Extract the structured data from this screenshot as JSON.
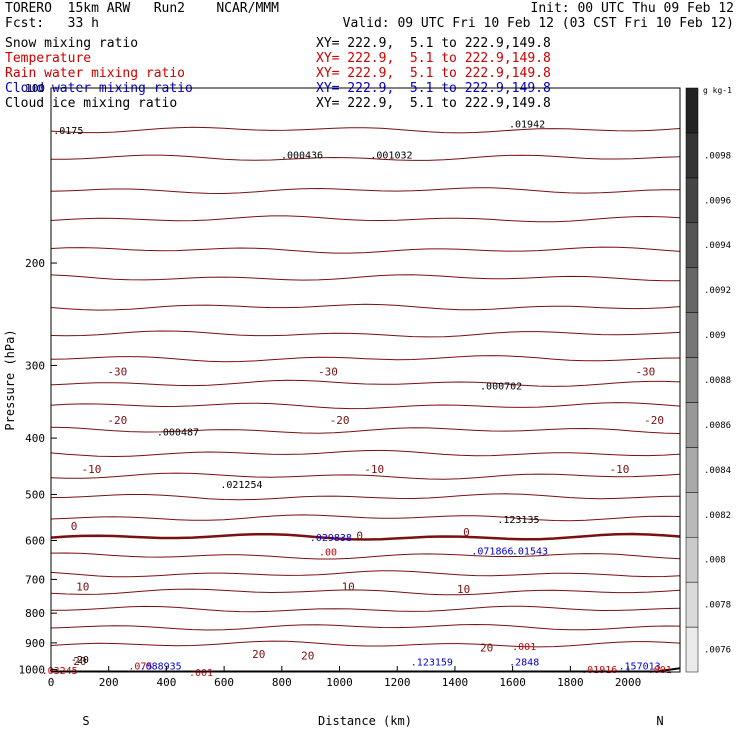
{
  "header": {
    "model": "TORERO  15km ARW   Run2    NCAR/MMM",
    "init": "Init: 00 UTC Thu 09 Feb 12",
    "fcst": "Fcst:   33 h",
    "valid": "Valid: 09 UTC Fri 10 Feb 12 (03 CST Fri 10 Feb 12)"
  },
  "fields": [
    {
      "label": "Snow mixing ratio",
      "color": "#000000",
      "xy": ""
    },
    {
      "label": "Temperature",
      "color": "#cc0000",
      "xy": "XY= 222.9,  5.1 to 222.9,149.8"
    },
    {
      "label": "Rain water mixing ratio",
      "color": "#cc0000",
      "xy": "XY= 222.9,  5.1 to 222.9,149.8"
    },
    {
      "label": "Cloud water mixing ratio",
      "color": "#0000cc",
      "xy": "XY= 222.9,  5.1 to 222.9,149.8"
    },
    {
      "label": "Cloud ice mixing ratio",
      "color": "#000000",
      "xy": "XY= 222.9,  5.1 to 222.9,149.8"
    }
  ],
  "first_xy": "XY= 222.9,  5.1 to 222.9,149.8",
  "chart_data": {
    "type": "contour cross-section",
    "xlabel": "Distance (km)",
    "ylabel": "Pressure (hPa)",
    "xlim": [
      0,
      2180
    ],
    "ylim": [
      1010,
      100
    ],
    "x_ticks": [
      0,
      200,
      400,
      600,
      800,
      1000,
      1200,
      1400,
      1600,
      1800,
      2000
    ],
    "y_ticks": [
      100,
      200,
      300,
      400,
      500,
      600,
      700,
      800,
      900,
      1000
    ],
    "y_scale": "log",
    "ends": {
      "left": "S",
      "right": "N"
    },
    "colorbar": {
      "unit": "g kg-1",
      "ticks": [
        ".0076",
        ".0078",
        ".008",
        ".0082",
        ".0084",
        ".0086",
        ".0088",
        ".009",
        ".0092",
        ".0094",
        ".0096",
        ".0098"
      ]
    },
    "temperature_labels": [
      {
        "text": "-30",
        "x": 230,
        "p": 307
      },
      {
        "text": "-30",
        "x": 960,
        "p": 307
      },
      {
        "text": "-30",
        "x": 2060,
        "p": 307
      },
      {
        "text": "-20",
        "x": 230,
        "p": 372
      },
      {
        "text": "-20",
        "x": 1000,
        "p": 372
      },
      {
        "text": "-20",
        "x": 2090,
        "p": 372
      },
      {
        "text": "-10",
        "x": 140,
        "p": 452
      },
      {
        "text": "-10",
        "x": 1120,
        "p": 452
      },
      {
        "text": "-10",
        "x": 1970,
        "p": 452
      },
      {
        "text": "0",
        "x": 80,
        "p": 566
      },
      {
        "text": "0",
        "x": 1070,
        "p": 588
      },
      {
        "text": "0",
        "x": 1440,
        "p": 580
      },
      {
        "text": "10",
        "x": 110,
        "p": 720
      },
      {
        "text": "10",
        "x": 1030,
        "p": 720
      },
      {
        "text": "10",
        "x": 1430,
        "p": 727
      },
      {
        "text": "20",
        "x": 720,
        "p": 940
      },
      {
        "text": "20",
        "x": 890,
        "p": 947
      },
      {
        "text": "20",
        "x": 1510,
        "p": 917
      },
      {
        "text": "20",
        "x": 100,
        "p": 967
      }
    ],
    "annotations": [
      {
        "text": ".000436",
        "x": 870,
        "p": 130,
        "color": "#000000"
      },
      {
        "text": ".001032",
        "x": 1180,
        "p": 130,
        "color": "#000000"
      },
      {
        "text": ".000702",
        "x": 1560,
        "p": 325,
        "color": "#000000"
      },
      {
        "text": ".000487",
        "x": 440,
        "p": 390,
        "color": "#000000"
      },
      {
        "text": ".021254",
        "x": 660,
        "p": 480,
        "color": "#000000"
      },
      {
        "text": ".123135",
        "x": 1620,
        "p": 551,
        "color": "#000000"
      },
      {
        "text": ".01942",
        "x": 1650,
        "p": 115,
        "color": "#000000"
      },
      {
        "text": ".0175",
        "x": 60,
        "p": 118,
        "color": "#000000"
      },
      {
        "text": ".029838",
        "x": 970,
        "p": 592,
        "color": "#0000cc"
      },
      {
        "text": ".071866",
        "x": 1530,
        "p": 624,
        "color": "#0000cc"
      },
      {
        "text": ".01543",
        "x": 1660,
        "p": 624,
        "color": "#0000cc"
      },
      {
        "text": ".00",
        "x": 960,
        "p": 627,
        "color": "#cc0000"
      },
      {
        "text": ".001",
        "x": 1640,
        "p": 912,
        "color": "#cc0000"
      },
      {
        "text": ".123159",
        "x": 1320,
        "p": 968,
        "color": "#0000cc"
      },
      {
        "text": ".2848",
        "x": 1640,
        "p": 968,
        "color": "#0000cc"
      },
      {
        "text": ".157013",
        "x": 2040,
        "p": 985,
        "color": "#0000cc"
      },
      {
        "text": ".01916",
        "x": 1900,
        "p": 998,
        "color": "#cc0000"
      },
      {
        "text": ".001",
        "x": 2110,
        "p": 998,
        "color": "#cc0000"
      },
      {
        "text": ".03245",
        "x": 30,
        "p": 1003,
        "color": "#cc0000"
      },
      {
        "text": ".075",
        "x": 310,
        "p": 985,
        "color": "#cc0000"
      },
      {
        "text": ".088935",
        "x": 380,
        "p": 985,
        "color": "#0000cc"
      },
      {
        "text": ".001",
        "x": 520,
        "p": 1010,
        "color": "#cc0000"
      },
      {
        "text": "-20",
        "x": 100,
        "p": 960,
        "color": "#000000"
      }
    ]
  }
}
